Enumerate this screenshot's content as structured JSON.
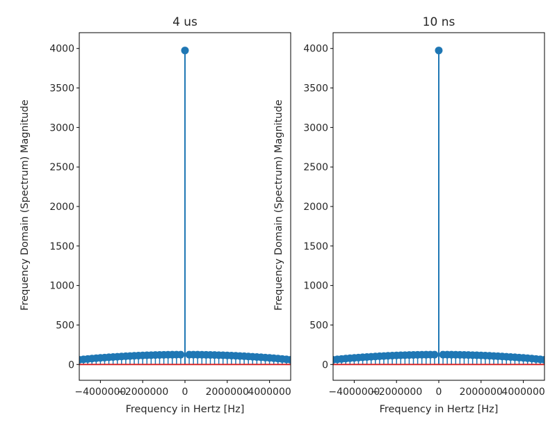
{
  "chart_data": [
    {
      "type": "stem",
      "title": "4 us",
      "xlabel": "Frequency in Hertz [Hz]",
      "ylabel": "Frequency Domain (Spectrum) Magnitude",
      "xlim": [
        -5000000,
        5000000
      ],
      "ylim": [
        -200,
        4200
      ],
      "xticks": [
        -4000000,
        -2000000,
        0,
        2000000,
        4000000
      ],
      "xtick_labels": [
        "−4000000",
        "−2000000",
        "0",
        "2000000",
        "4000000"
      ],
      "yticks": [
        0,
        500,
        1000,
        1500,
        2000,
        2500,
        3000,
        3500,
        4000
      ],
      "ytick_labels": [
        "0",
        "500",
        "1000",
        "1500",
        "2000",
        "2500",
        "3000",
        "3500",
        "4000"
      ],
      "peak": {
        "x": 0,
        "y": 3975
      },
      "floor": {
        "x_start": -5000000,
        "x_end": 5000000,
        "step": 200000,
        "y_edge": 60,
        "y_center": 125
      },
      "colors": {
        "stem": "#1f77b4",
        "baseline": "#d62728"
      }
    },
    {
      "type": "stem",
      "title": "10 ns",
      "xlabel": "Frequency in Hertz [Hz]",
      "ylabel": "Frequency Domain (Spectrum) Magnitude",
      "xlim": [
        -5000000,
        5000000
      ],
      "ylim": [
        -200,
        4200
      ],
      "xticks": [
        -4000000,
        -2000000,
        0,
        2000000,
        4000000
      ],
      "xtick_labels": [
        "−4000000",
        "−2000000",
        "0",
        "2000000",
        "4000000"
      ],
      "yticks": [
        0,
        500,
        1000,
        1500,
        2000,
        2500,
        3000,
        3500,
        4000
      ],
      "ytick_labels": [
        "0",
        "500",
        "1000",
        "1500",
        "2000",
        "2500",
        "3000",
        "3500",
        "4000"
      ],
      "peak": {
        "x": 0,
        "y": 3975
      },
      "floor": {
        "x_start": -5000000,
        "x_end": 5000000,
        "step": 200000,
        "y_edge": 60,
        "y_center": 125
      },
      "colors": {
        "stem": "#1f77b4",
        "baseline": "#d62728"
      }
    }
  ]
}
